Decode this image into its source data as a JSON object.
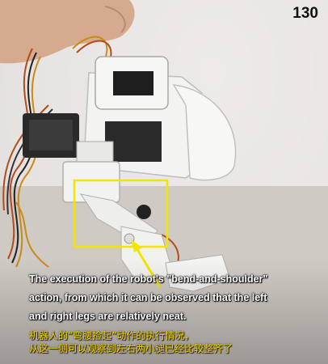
{
  "page_number": "130",
  "caption_en": {
    "line1": "The execution of the robot's \"bend-and-shoulder\"",
    "line2": "action, from which it can be observed that the left",
    "line3": "and right legs are relatively neat."
  },
  "caption_zh": {
    "line1": "机器人的“弯腰捡起”动作的执行情况，",
    "line2": "从这一侧可以观察到左右两小腿已经比较整齐了"
  },
  "colors": {
    "highlight_box": "#f2e600",
    "arrow": "#f2e600",
    "caption_en": "#ffffff",
    "caption_zh": "#f3d400"
  }
}
